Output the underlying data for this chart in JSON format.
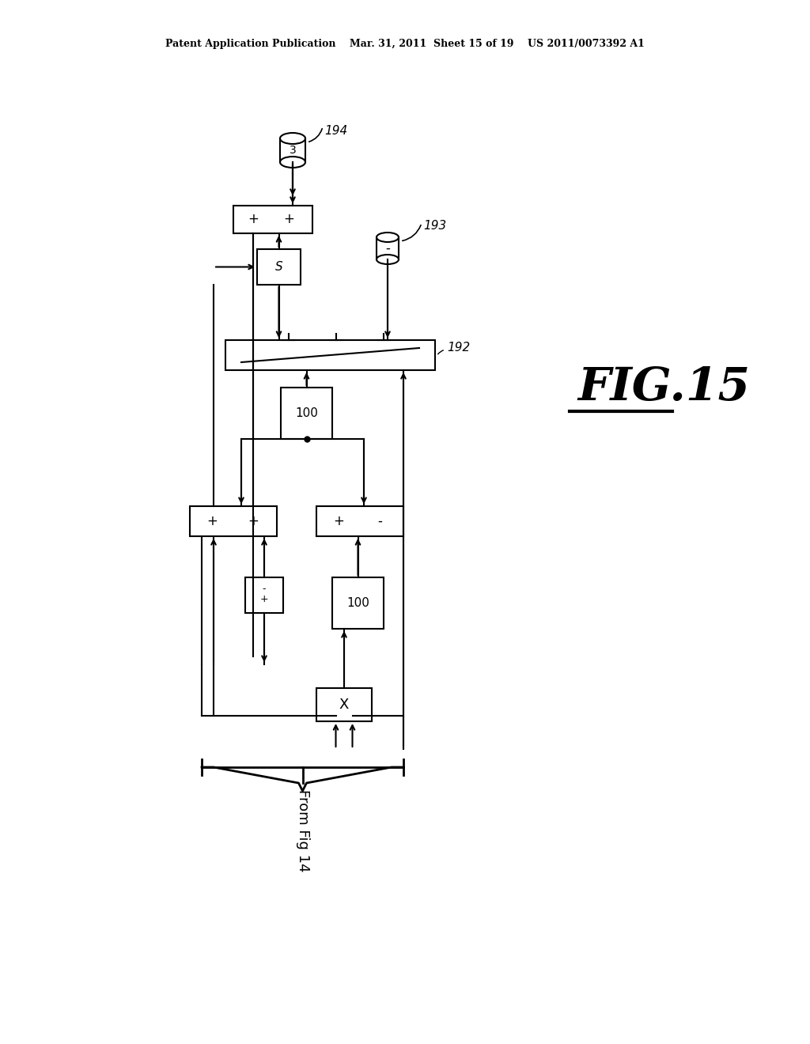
{
  "bg_color": "#ffffff",
  "line_color": "#000000",
  "header_text": "Patent Application Publication    Mar. 31, 2011  Sheet 15 of 19    US 2011/0073392 A1",
  "fig15_label": "FIG.15",
  "label_194": "194",
  "label_193": "193",
  "label_192": "192",
  "from_fig14": "From Fig 14"
}
